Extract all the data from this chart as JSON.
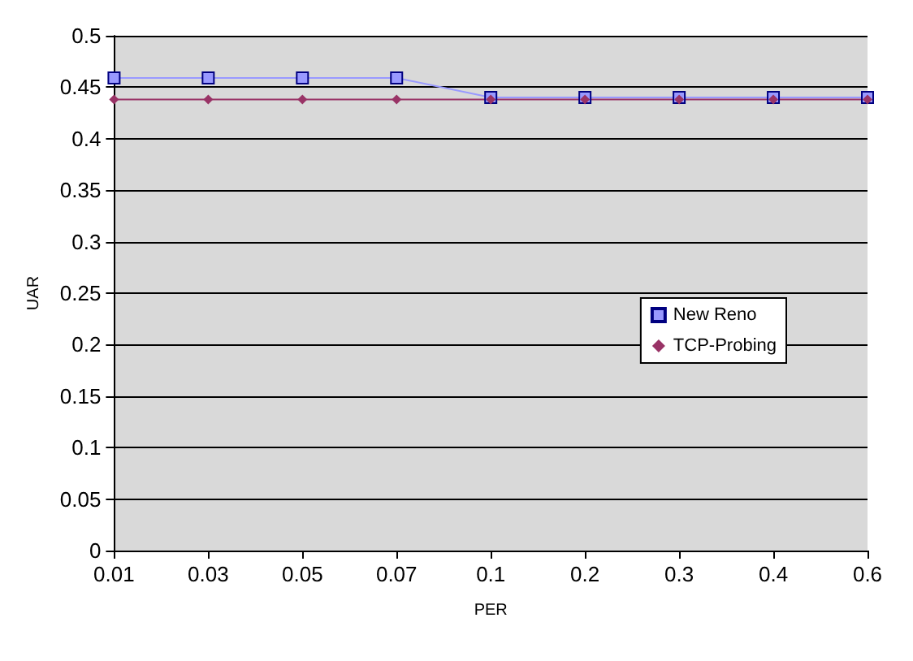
{
  "chart_data": {
    "type": "line",
    "xlabel": "PER",
    "ylabel": "UAR",
    "categories": [
      "0.01",
      "0.03",
      "0.05",
      "0.07",
      "0.1",
      "0.2",
      "0.3",
      "0.4",
      "0.6"
    ],
    "series": [
      {
        "name": "New Reno",
        "color": "#9999ff",
        "marker": "square",
        "values": [
          0.459,
          0.459,
          0.459,
          0.459,
          0.44,
          0.44,
          0.44,
          0.44,
          0.44
        ]
      },
      {
        "name": "TCP-Probing",
        "color": "#993366",
        "marker": "diamond",
        "values": [
          0.438,
          0.438,
          0.438,
          0.438,
          0.438,
          0.438,
          0.438,
          0.438,
          0.438
        ]
      }
    ],
    "ylim": [
      0,
      0.5
    ],
    "yticks": [
      0,
      0.05,
      0.1,
      0.15,
      0.2,
      0.25,
      0.3,
      0.35,
      0.4,
      0.45,
      0.5
    ],
    "grid": "y",
    "legend": "right",
    "line_style": "solid"
  }
}
